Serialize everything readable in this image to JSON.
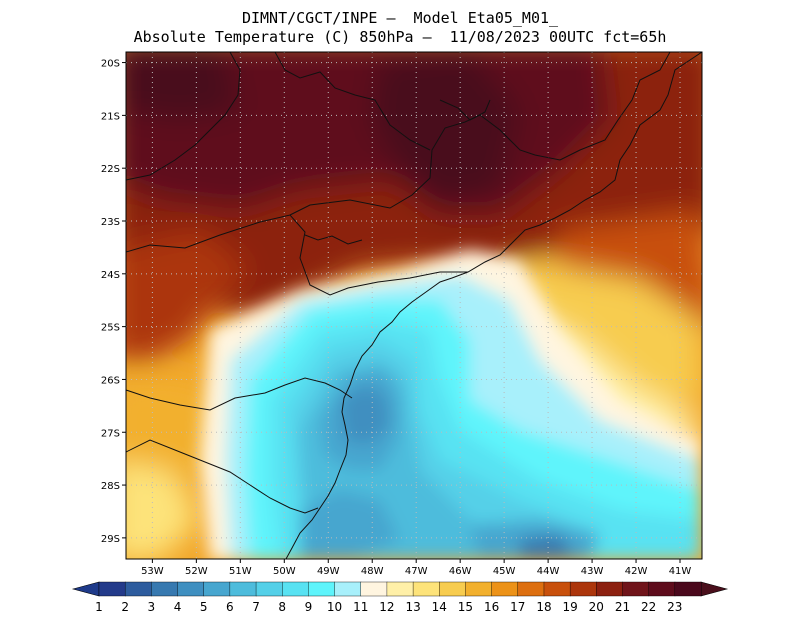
{
  "header": {
    "line1": "DIMNT/CGCT/INPE —  Model Eta05_M01_",
    "line2": "Absolute Temperature (C) 850hPa —  11/08/2023 00UTC fct=65h"
  },
  "map": {
    "lat_labels": [
      "20S",
      "21S",
      "22S",
      "23S",
      "24S",
      "25S",
      "26S",
      "27S",
      "28S",
      "29S"
    ],
    "lon_labels": [
      "53W",
      "52W",
      "51W",
      "50W",
      "49W",
      "48W",
      "47W",
      "46W",
      "45W",
      "44W",
      "43W",
      "42W",
      "41W"
    ],
    "lat_range": [
      -29.4,
      -19.8
    ],
    "lon_range": [
      -53.6,
      -40.5
    ],
    "grid": true
  },
  "colorbar": {
    "labels": [
      "1",
      "2",
      "3",
      "4",
      "5",
      "6",
      "7",
      "8",
      "9",
      "10",
      "11",
      "12",
      "13",
      "14",
      "15",
      "16",
      "17",
      "18",
      "19",
      "20",
      "21",
      "22",
      "23"
    ],
    "colors": [
      "#233a8a",
      "#2d5c9e",
      "#3779b0",
      "#3f8fc0",
      "#47a6cf",
      "#4dbcdc",
      "#54d0e8",
      "#58e2f2",
      "#5ef4fb",
      "#a8f0fb",
      "#fff5e0",
      "#fff0a8",
      "#fde37a",
      "#f7cc4f",
      "#f2b02d",
      "#ec9218",
      "#dd6f10",
      "#c8500c",
      "#ac360c",
      "#8c2010",
      "#70141a",
      "#5e0c1c",
      "#4a081c"
    ],
    "under_color": "#1e3a8a",
    "over_color": "#4a0f1c"
  },
  "colors": {
    "map_background": "#f1a62a",
    "coastline": "#111111",
    "grid_dots": "#bbbbbb"
  }
}
